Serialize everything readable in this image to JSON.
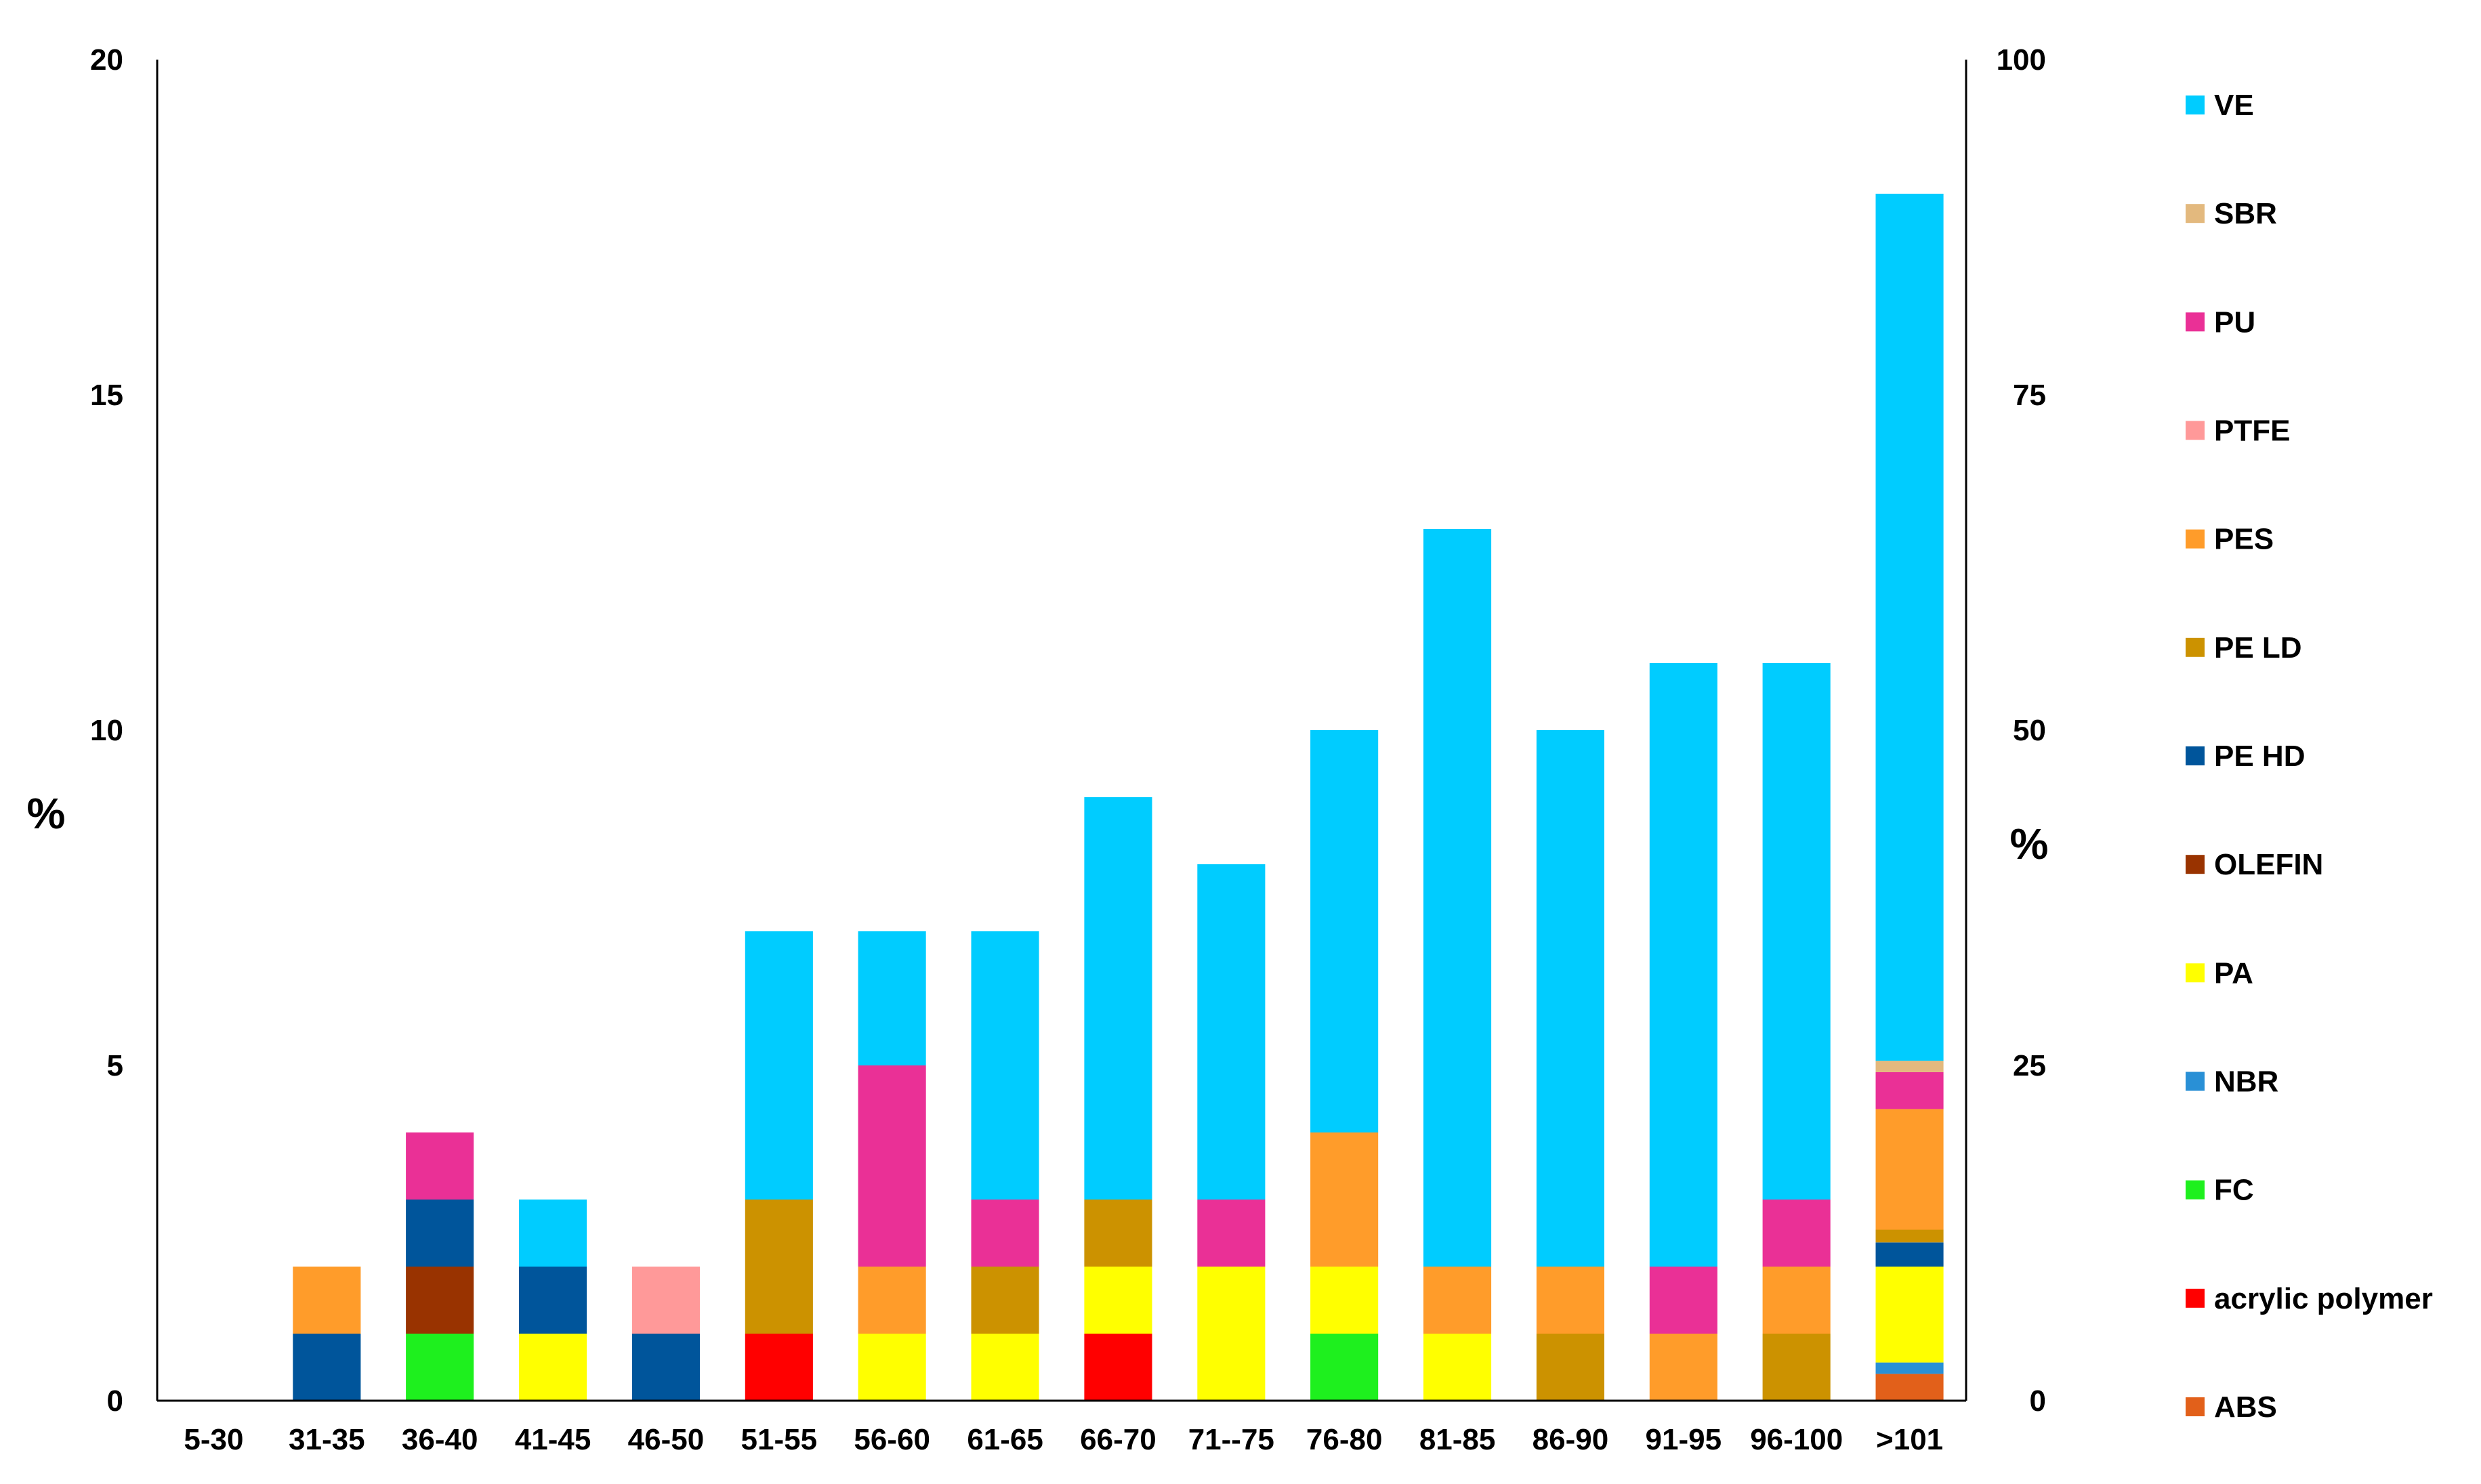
{
  "chart_data": {
    "type": "bar",
    "stacked": true,
    "title": "",
    "xlabel": "",
    "ylabel": "%",
    "y2label": "%",
    "ylim": [
      0,
      20
    ],
    "y2lim": [
      0,
      100
    ],
    "yticks": [
      0,
      5,
      10,
      15,
      20
    ],
    "y2ticks": [
      0,
      25,
      50,
      75,
      100
    ],
    "grid": false,
    "legend_position": "right",
    "categories": [
      "5-30",
      "31-35",
      "36-40",
      "41-45",
      "46-50",
      "51-55",
      "56-60",
      "61-65",
      "66-70",
      "71--75",
      "76-80",
      "81-85",
      "86-90",
      "91-95",
      "96-100",
      ">101"
    ],
    "series": [
      {
        "name": "ABS",
        "color": "#e2601a",
        "values": [
          0,
          0,
          0,
          0,
          0,
          0,
          0,
          0,
          0,
          0,
          0,
          0,
          0,
          0,
          0,
          0.4
        ]
      },
      {
        "name": "acrylic polymer",
        "color": "#ff0000",
        "values": [
          0,
          0,
          0,
          0,
          0,
          1,
          0,
          0,
          1,
          0,
          0,
          0,
          0,
          0,
          0,
          0
        ]
      },
      {
        "name": "FC",
        "color": "#1ef01e",
        "values": [
          0,
          0,
          1,
          0,
          0,
          0,
          0,
          0,
          0,
          0,
          1,
          0,
          0,
          0,
          0,
          0
        ]
      },
      {
        "name": "NBR",
        "color": "#2990d6",
        "values": [
          0,
          0,
          0,
          0,
          0,
          0,
          0,
          0,
          0,
          0,
          0,
          0,
          0,
          0,
          0,
          0.17
        ]
      },
      {
        "name": "PA",
        "color": "#ffff00",
        "values": [
          0,
          0,
          0,
          1,
          0,
          0,
          1,
          1,
          1,
          2,
          1,
          1,
          0,
          0,
          0,
          1.43
        ]
      },
      {
        "name": "OLEFIN",
        "color": "#993300",
        "values": [
          0,
          0,
          1,
          0,
          0,
          0,
          0,
          0,
          0,
          0,
          0,
          0,
          0,
          0,
          0,
          0
        ]
      },
      {
        "name": "PE HD",
        "color": "#00559b",
        "values": [
          0,
          1,
          1,
          1,
          1,
          0,
          0,
          0,
          0,
          0,
          0,
          0,
          0,
          0,
          0,
          0.36
        ]
      },
      {
        "name": "PE LD",
        "color": "#cc9200",
        "values": [
          0,
          0,
          0,
          0,
          0,
          2,
          0,
          1,
          1,
          0,
          0,
          0,
          1,
          0,
          1,
          0.19
        ]
      },
      {
        "name": "PES",
        "color": "#ff9c2a",
        "values": [
          0,
          1,
          0,
          0,
          0,
          0,
          1,
          0,
          0,
          0,
          2,
          1,
          1,
          1,
          1,
          1.8
        ]
      },
      {
        "name": "PTFE",
        "color": "#ff9999",
        "values": [
          0,
          0,
          0,
          0,
          1,
          0,
          0,
          0,
          0,
          0,
          0,
          0,
          0,
          0,
          0,
          0
        ]
      },
      {
        "name": "PU",
        "color": "#ea3096",
        "values": [
          0,
          0,
          1,
          0,
          0,
          0,
          3,
          1,
          0,
          1,
          0,
          0,
          0,
          1,
          1,
          0.55
        ]
      },
      {
        "name": "SBR",
        "color": "#e3b97e",
        "values": [
          0,
          0,
          0,
          0,
          0,
          0,
          0,
          0,
          0,
          0,
          0,
          0,
          0,
          0,
          0,
          0.17
        ]
      },
      {
        "name": "VE",
        "color": "#00ccff",
        "values": [
          0,
          0,
          0,
          1,
          0,
          4,
          2,
          4,
          6,
          5,
          6,
          11,
          8,
          9,
          8,
          12.93
        ]
      }
    ]
  }
}
